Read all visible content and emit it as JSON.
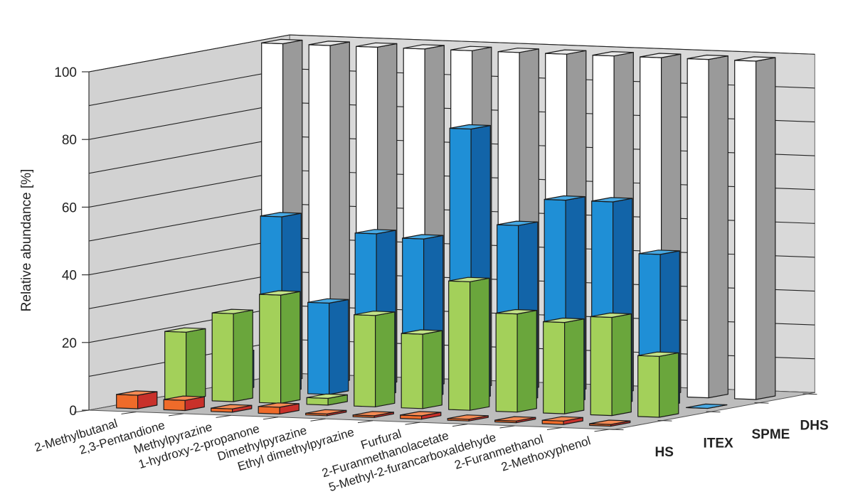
{
  "chart_data": {
    "type": "bar",
    "ylabel": "Relative abundance [%]",
    "ylim": [
      0,
      100
    ],
    "yticks": [
      0,
      20,
      40,
      60,
      80,
      100
    ],
    "grid": true,
    "categories": [
      "2-Methylbutanal",
      "2,3-Pentandione",
      "Methylpyrazine",
      "1-hydroxy-2-propanone",
      "Dimethylpyrazine",
      "Ethyl dimethylpyrazine",
      "Furfural",
      "2-Furanmethanolacetate",
      "5-Methyl-2-furancarboxaldehyde",
      "2-Furanmethanol",
      "2-Methoxyphenol"
    ],
    "series": [
      {
        "name": "HS",
        "values": [
          4,
          3,
          1,
          2,
          0.5,
          0.5,
          1,
          0.5,
          0.5,
          1,
          0.5
        ]
      },
      {
        "name": "ITEX",
        "values": [
          20,
          26,
          32,
          2,
          27,
          22,
          38,
          29,
          27,
          29,
          18
        ]
      },
      {
        "name": "SPME",
        "values": [
          11,
          52,
          27,
          48,
          47,
          80,
          52,
          60,
          60,
          45,
          0
        ]
      },
      {
        "name": "DHS",
        "values": [
          100,
          100,
          100,
          100,
          100,
          100,
          100,
          100,
          100,
          100,
          100
        ]
      }
    ],
    "colors": {
      "HS": {
        "front": "#ef6b2a",
        "side": "#c8302a",
        "top": "#f48a54"
      },
      "ITEX": {
        "front": "#a3d05a",
        "side": "#6aa63c",
        "top": "#c2e288"
      },
      "SPME": {
        "front": "#1f8fd6",
        "side": "#1264a8",
        "top": "#47a9e4"
      },
      "DHS": {
        "front": "#ffffff",
        "side": "#9a9a9a",
        "top": "#e8e8e8"
      }
    }
  }
}
